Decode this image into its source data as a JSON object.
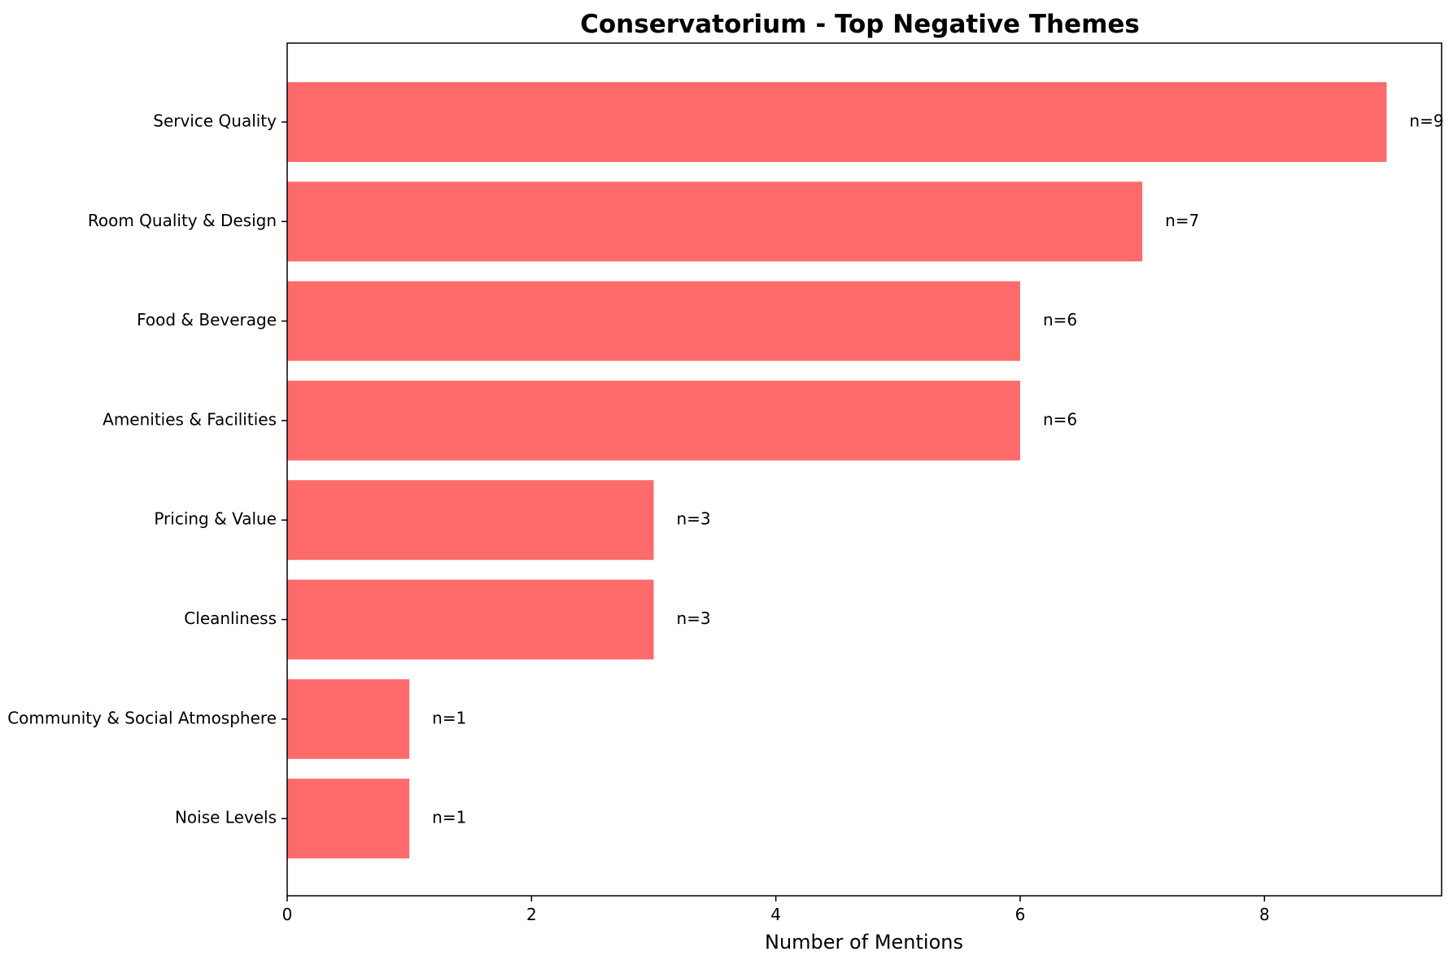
{
  "chart_data": {
    "type": "bar",
    "orientation": "horizontal",
    "title": "Conservatorium - Top Negative Themes",
    "xlabel": "Number of Mentions",
    "ylabel": "",
    "xlim": [
      0,
      9.45
    ],
    "xticks": [
      0,
      2,
      4,
      6,
      8
    ],
    "grid": false,
    "bar_color": "#ff6b6b",
    "categories": [
      "Service Quality",
      "Room Quality & Design",
      "Food & Beverage",
      "Amenities & Facilities",
      "Pricing & Value",
      "Cleanliness",
      "Community & Social Atmosphere",
      "Noise Levels"
    ],
    "values": [
      9,
      7,
      6,
      6,
      3,
      3,
      1,
      1
    ],
    "value_labels": [
      "n=9",
      "n=7",
      "n=6",
      "n=6",
      "n=3",
      "n=3",
      "n=1",
      "n=1"
    ]
  }
}
